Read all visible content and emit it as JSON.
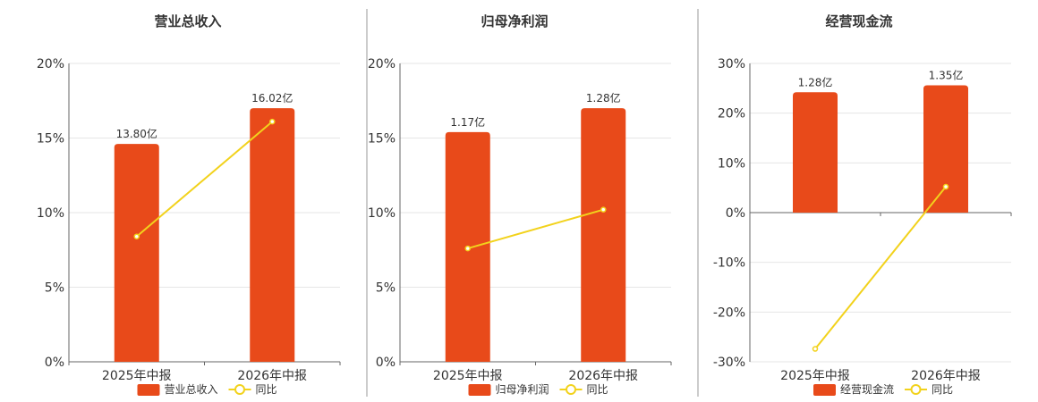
{
  "chart_data": [
    {
      "type": "bar",
      "title": "营业总收入",
      "categories": [
        "2025年中报",
        "2026年中报"
      ],
      "series": [
        {
          "name": "营业总收入",
          "kind": "bar",
          "values": [
            14.6,
            17.0
          ],
          "labels": [
            "13.80亿",
            "16.02亿"
          ],
          "color": "#e84a1a"
        },
        {
          "name": "同比",
          "kind": "line",
          "values": [
            8.4,
            16.1
          ],
          "color": "#f2d21c"
        }
      ],
      "ylim": [
        0,
        20
      ],
      "yticks": [
        "0%",
        "5%",
        "10%",
        "15%",
        "20%"
      ],
      "grid": true,
      "legend": "bottom"
    },
    {
      "type": "bar",
      "title": "归母净利润",
      "categories": [
        "2025年中报",
        "2026年中报"
      ],
      "series": [
        {
          "name": "归母净利润",
          "kind": "bar",
          "values": [
            15.4,
            17.0
          ],
          "labels": [
            "1.17亿",
            "1.28亿"
          ],
          "color": "#e84a1a"
        },
        {
          "name": "同比",
          "kind": "line",
          "values": [
            7.6,
            10.2
          ],
          "color": "#f2d21c"
        }
      ],
      "ylim": [
        0,
        20
      ],
      "yticks": [
        "0%",
        "5%",
        "10%",
        "15%",
        "20%"
      ],
      "grid": true,
      "legend": "bottom"
    },
    {
      "type": "bar",
      "title": "经营现金流",
      "categories": [
        "2025年中报",
        "2026年中报"
      ],
      "series": [
        {
          "name": "经营现金流",
          "kind": "bar",
          "values": [
            24.2,
            25.6
          ],
          "labels": [
            "1.28亿",
            "1.35亿"
          ],
          "color": "#e84a1a"
        },
        {
          "name": "同比",
          "kind": "line",
          "values": [
            -27.4,
            5.2
          ],
          "color": "#f2d21c"
        }
      ],
      "ylim": [
        -30,
        30
      ],
      "yticks": [
        "-30%",
        "-20%",
        "-10%",
        "0%",
        "10%",
        "20%",
        "30%"
      ],
      "grid": true,
      "legend": "bottom"
    }
  ]
}
